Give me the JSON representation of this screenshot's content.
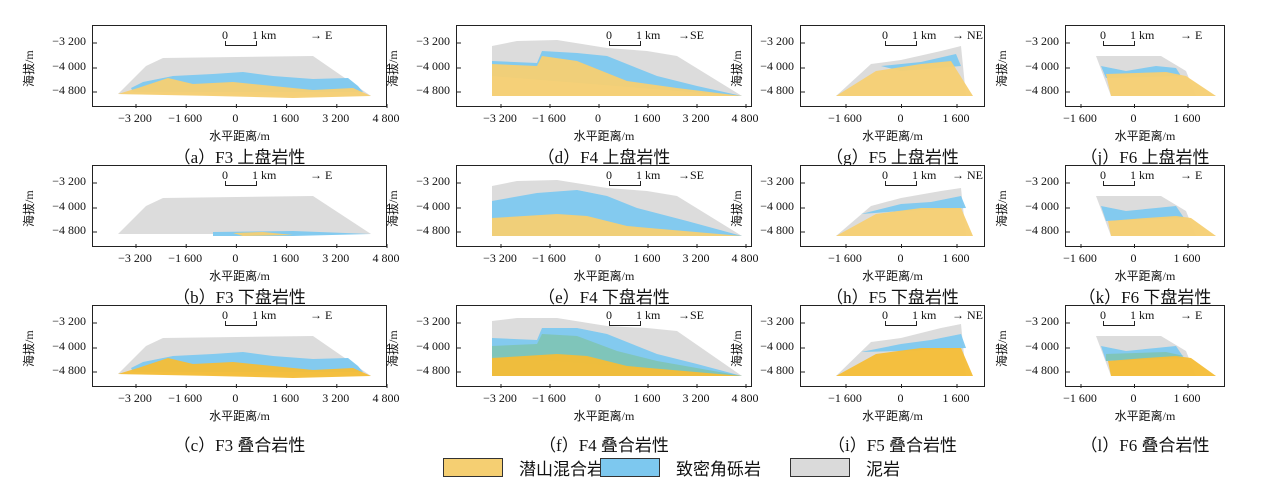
{
  "ylabel": "海拔/m",
  "xlabel": "水平距离/m",
  "yticks": [
    "−3 200",
    "−4 000",
    "−4 800"
  ],
  "scale": {
    "zero": "0",
    "one": "1 km"
  },
  "columns": [
    {
      "fault": "F3",
      "direction": "→ E",
      "xticks": [
        "−3 200",
        "−1 600",
        "0",
        "1 600",
        "3 200",
        "4 800"
      ]
    },
    {
      "fault": "F4",
      "direction": "→SE",
      "xticks": [
        "−3 200",
        "−1 600",
        "0",
        "1 600",
        "3 200",
        "4 800"
      ]
    },
    {
      "fault": "F5",
      "direction": "→ NE",
      "xticks": [
        "−1 600",
        "0",
        "1 600"
      ]
    },
    {
      "fault": "F6",
      "direction": "→ E",
      "xticks": [
        "−1 600",
        "0",
        "1 600"
      ]
    }
  ],
  "captions": [
    [
      "（a）F3 上盘岩性",
      "（b）F3 下盘岩性",
      "（c）F3 叠合岩性"
    ],
    [
      "（d）F4 上盘岩性",
      "（e）F4 下盘岩性",
      "（f）F4 叠合岩性"
    ],
    [
      "（g）F5 上盘岩性",
      "（h）F5 下盘岩性",
      "（i）F5 叠合岩性"
    ],
    [
      "（j）F6 上盘岩性",
      "（k）F6 下盘岩性",
      "（l）F6 叠合岩性"
    ]
  ],
  "legend": [
    {
      "label": "潜山混合岩",
      "color": "#f5cf72"
    },
    {
      "label": "致密角砾岩",
      "color": "#7dc8ef"
    },
    {
      "label": "泥岩",
      "color": "#dadada"
    }
  ],
  "colors": {
    "yellow": "#f5cf72",
    "blue": "#7dc8ef",
    "grey": "#dadada",
    "overlay_yellow": "#f4bd36",
    "overlay_teal": "#7ec4b6"
  }
}
